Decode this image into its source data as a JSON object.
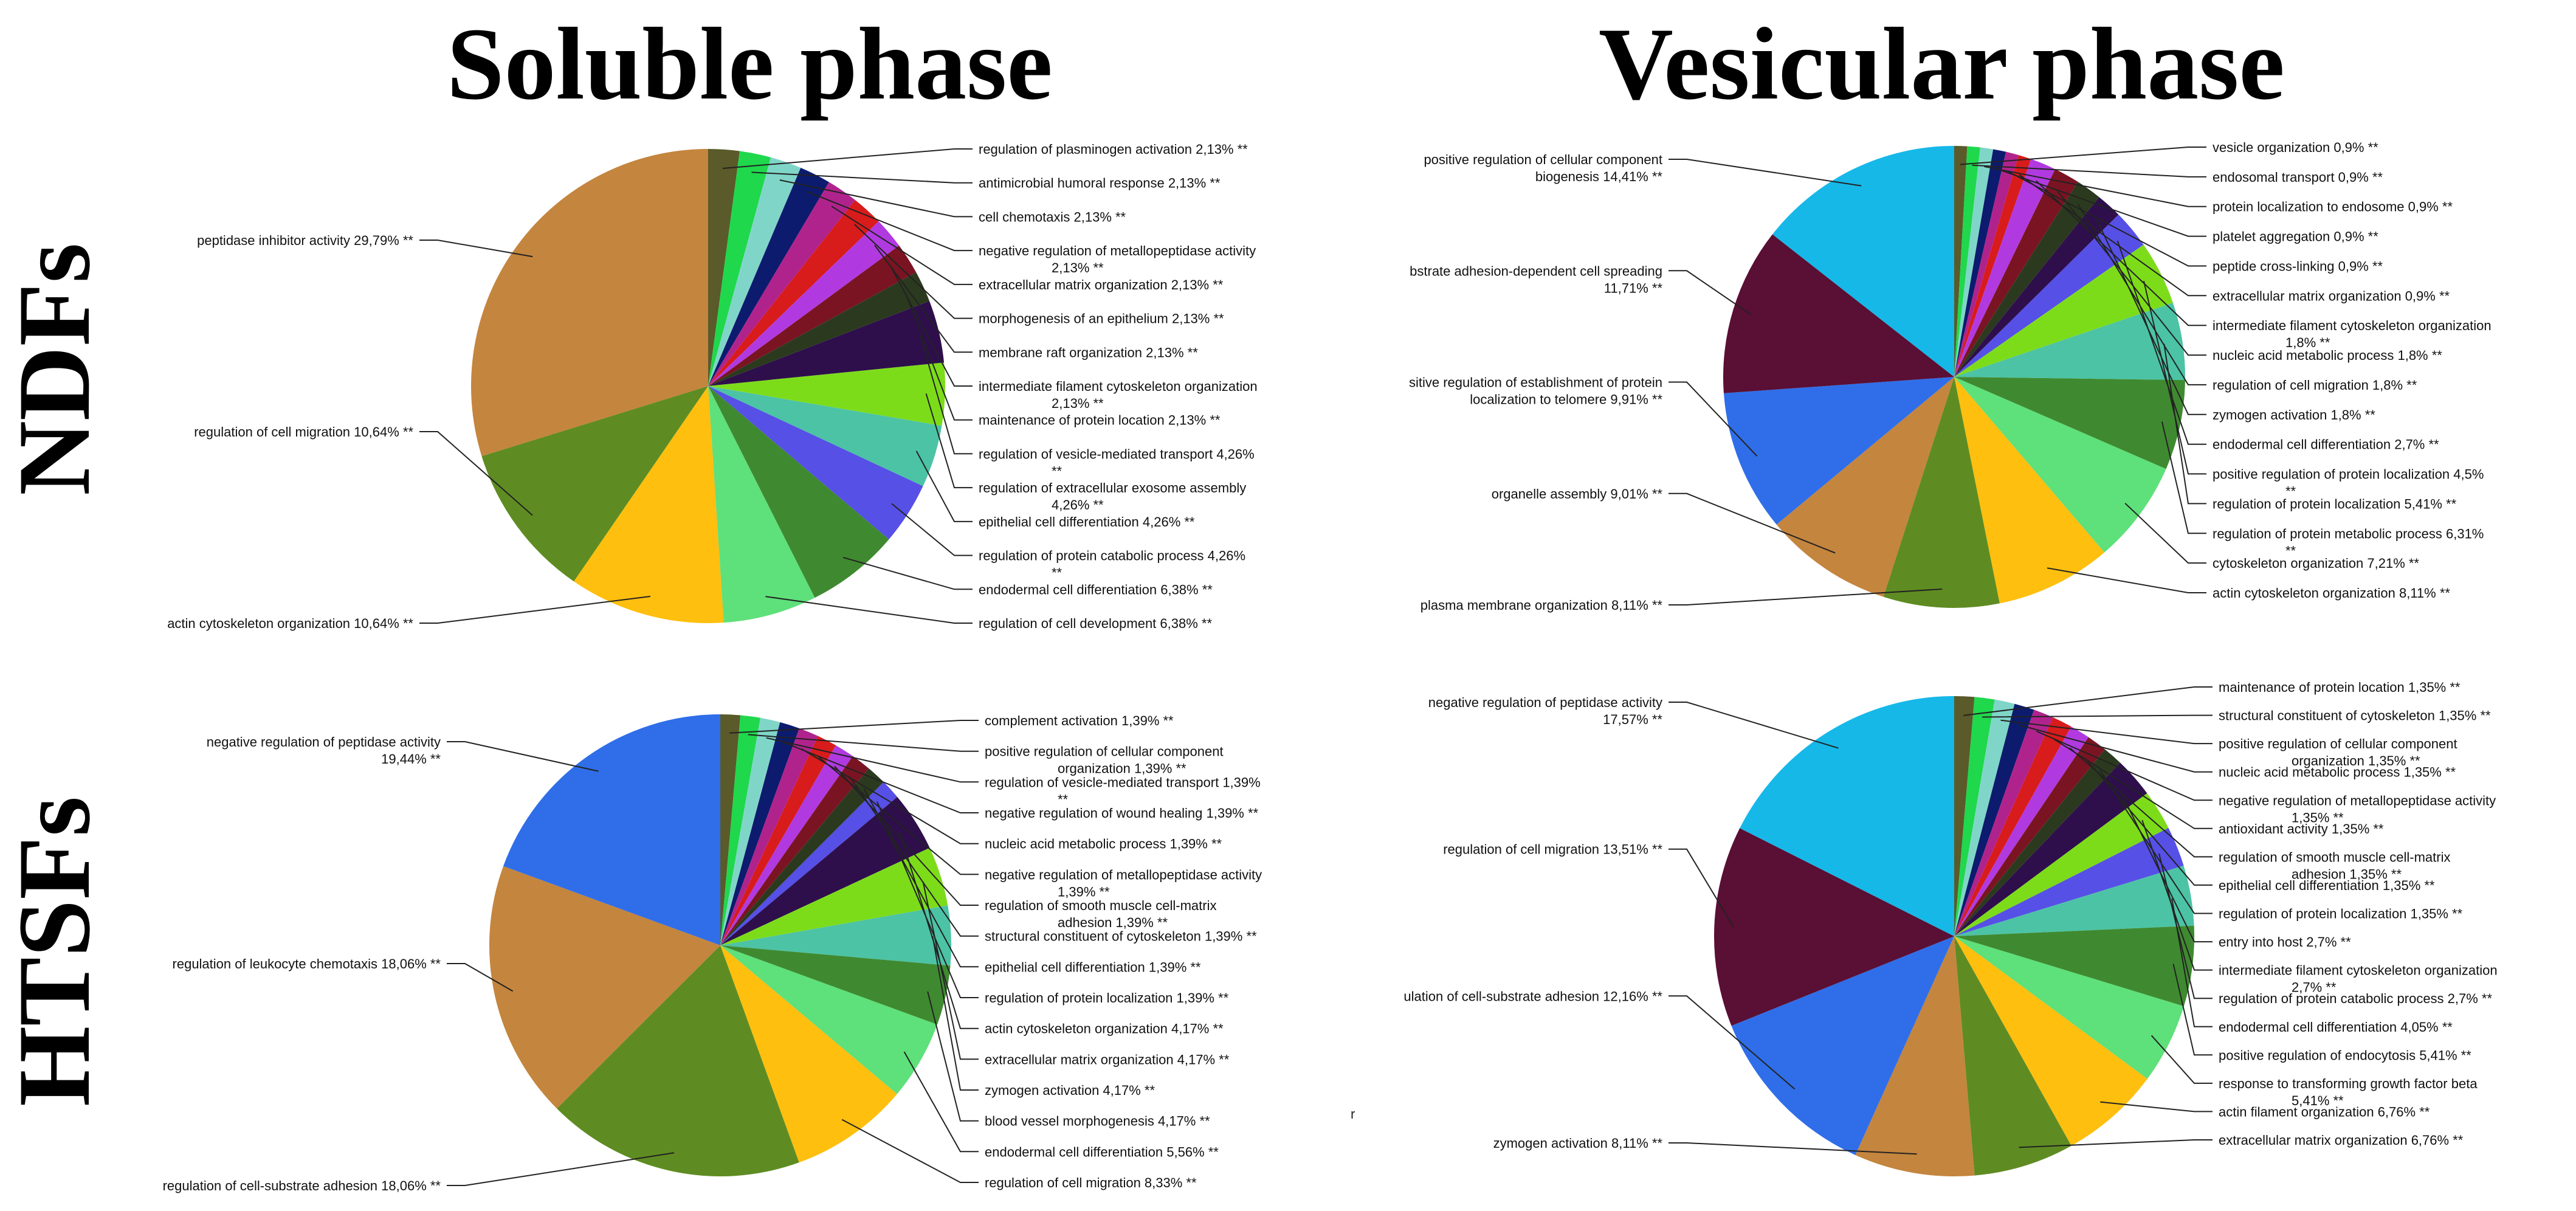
{
  "titles": {
    "soluble": "Soluble phase",
    "vesicular": "Vesicular phase",
    "ndfs": "NDFs",
    "htsfs": "HTSFs"
  },
  "stray_mark": "r",
  "chart_data": [
    {
      "id": "ndfs-soluble",
      "type": "pie",
      "title": "Soluble phase",
      "row": "NDFs",
      "slices": [
        {
          "label": "regulation of plasminogen activation 2,13% **",
          "value": 2.13,
          "color": "#5a5a2a",
          "side": "right"
        },
        {
          "label": "antimicrobial humoral response 2,13% **",
          "value": 2.13,
          "color": "#1fd84c",
          "side": "right"
        },
        {
          "label": "cell chemotaxis 2,13% **",
          "value": 2.13,
          "color": "#7fd6c8",
          "side": "right"
        },
        {
          "label": "negative regulation of metallopeptidase activity\n2,13% **",
          "value": 2.13,
          "color": "#0c1b6e",
          "side": "right"
        },
        {
          "label": "extracellular matrix organization 2,13% **",
          "value": 2.13,
          "color": "#b0238c",
          "side": "right"
        },
        {
          "label": "morphogenesis of an epithelium 2,13% **",
          "value": 2.13,
          "color": "#d81b1b",
          "side": "right"
        },
        {
          "label": "membrane raft organization 2,13% **",
          "value": 2.13,
          "color": "#b03ae0",
          "side": "right"
        },
        {
          "label": "intermediate filament cytoskeleton organization\n2,13% **",
          "value": 2.13,
          "color": "#7a1422",
          "side": "right"
        },
        {
          "label": "maintenance of protein location 2,13% **",
          "value": 2.13,
          "color": "#2b3a1e",
          "side": "right"
        },
        {
          "label": "regulation of vesicle-mediated transport 4,26%\n**",
          "value": 4.26,
          "color": "#2e0f4c",
          "side": "right"
        },
        {
          "label": "regulation of extracellular exosome assembly\n4,26% **",
          "value": 4.26,
          "color": "#7ddc1a",
          "side": "right"
        },
        {
          "label": "epithelial cell differentiation 4,26% **",
          "value": 4.26,
          "color": "#4cc3a5",
          "side": "right"
        },
        {
          "label": "regulation of protein catabolic process 4,26%\n**",
          "value": 4.26,
          "color": "#5650e6",
          "side": "right"
        },
        {
          "label": "endodermal cell differentiation 6,38% **",
          "value": 6.38,
          "color": "#3f8a30",
          "side": "right"
        },
        {
          "label": "regulation of cell development 6,38% **",
          "value": 6.38,
          "color": "#5ee07a",
          "side": "right"
        },
        {
          "label": "actin cytoskeleton organization 10,64% **",
          "value": 10.64,
          "color": "#ffbf0f",
          "side": "left"
        },
        {
          "label": "regulation of cell migration 10,64% **",
          "value": 10.64,
          "color": "#5e8c22",
          "side": "left"
        },
        {
          "label": "peptidase inhibitor activity 29,79% **",
          "value": 29.79,
          "color": "#c4853e",
          "side": "left"
        }
      ]
    },
    {
      "id": "ndfs-vesicular",
      "type": "pie",
      "title": "Vesicular phase",
      "row": "NDFs",
      "slices": [
        {
          "label": "vesicle organization 0,9% **",
          "value": 0.9,
          "color": "#5a5a2a",
          "side": "right"
        },
        {
          "label": "endosomal transport 0,9% **",
          "value": 0.9,
          "color": "#1fd84c",
          "side": "right"
        },
        {
          "label": "protein localization to endosome 0,9% **",
          "value": 0.9,
          "color": "#7fd6c8",
          "side": "right"
        },
        {
          "label": "platelet aggregation 0,9% **",
          "value": 0.9,
          "color": "#0c1b6e",
          "side": "right"
        },
        {
          "label": "peptide cross-linking 0,9% **",
          "value": 0.9,
          "color": "#b0238c",
          "side": "right"
        },
        {
          "label": "extracellular matrix organization 0,9% **",
          "value": 0.9,
          "color": "#d81b1b",
          "side": "right"
        },
        {
          "label": "intermediate filament cytoskeleton organization\n1,8% **",
          "value": 1.8,
          "color": "#b03ae0",
          "side": "right"
        },
        {
          "label": "nucleic acid metabolic process 1,8% **",
          "value": 1.8,
          "color": "#7a1422",
          "side": "right"
        },
        {
          "label": "regulation of cell migration 1,8% **",
          "value": 1.8,
          "color": "#2b3a1e",
          "side": "right"
        },
        {
          "label": "zymogen activation 1,8% **",
          "value": 1.8,
          "color": "#2e0f4c",
          "side": "right"
        },
        {
          "label": "endodermal cell differentiation 2,7% **",
          "value": 2.7,
          "color": "#5650e6",
          "side": "right"
        },
        {
          "label": "positive regulation of protein localization 4,5%\n**",
          "value": 4.5,
          "color": "#7ddc1a",
          "side": "right"
        },
        {
          "label": "regulation of protein localization 5,41% **",
          "value": 5.41,
          "color": "#4cc3a5",
          "side": "right"
        },
        {
          "label": "regulation of protein metabolic process 6,31%\n**",
          "value": 6.31,
          "color": "#3f8a30",
          "side": "right"
        },
        {
          "label": "cytoskeleton organization 7,21% **",
          "value": 7.21,
          "color": "#5ee07a",
          "side": "right"
        },
        {
          "label": "actin cytoskeleton organization 8,11% **",
          "value": 8.11,
          "color": "#ffbf0f",
          "side": "right"
        },
        {
          "label": "plasma membrane organization 8,11% **",
          "value": 8.11,
          "color": "#5e8c22",
          "side": "left"
        },
        {
          "label": "organelle assembly 9,01% **",
          "value": 9.01,
          "color": "#c4853e",
          "side": "left"
        },
        {
          "label": "sitive regulation of establishment of protein\nlocalization to telomere 9,91% **",
          "value": 9.91,
          "color": "#2f6ee8",
          "side": "left"
        },
        {
          "label": "bstrate adhesion-dependent cell spreading\n11,71% **",
          "value": 11.71,
          "color": "#5a0f35",
          "side": "left"
        },
        {
          "label": "positive regulation of cellular component\nbiogenesis 14,41% **",
          "value": 14.41,
          "color": "#16b8e8",
          "side": "left"
        }
      ]
    },
    {
      "id": "htsfs-soluble",
      "type": "pie",
      "title": "Soluble phase",
      "row": "HTSFs",
      "slices": [
        {
          "label": "complement activation 1,39% **",
          "value": 1.39,
          "color": "#5a5a2a",
          "side": "right"
        },
        {
          "label": "positive regulation of cellular component\norganization 1,39% **",
          "value": 1.39,
          "color": "#1fd84c",
          "side": "right"
        },
        {
          "label": "regulation of vesicle-mediated transport 1,39%\n**",
          "value": 1.39,
          "color": "#7fd6c8",
          "side": "right"
        },
        {
          "label": "negative regulation of wound healing 1,39% **",
          "value": 1.39,
          "color": "#0c1b6e",
          "side": "right"
        },
        {
          "label": "nucleic acid metabolic process 1,39% **",
          "value": 1.39,
          "color": "#b0238c",
          "side": "right"
        },
        {
          "label": "negative regulation of metallopeptidase activity\n1,39% **",
          "value": 1.39,
          "color": "#d81b1b",
          "side": "right"
        },
        {
          "label": "regulation of smooth muscle cell-matrix\nadhesion 1,39% **",
          "value": 1.39,
          "color": "#b03ae0",
          "side": "right"
        },
        {
          "label": "structural constituent of cytoskeleton 1,39% **",
          "value": 1.39,
          "color": "#7a1422",
          "side": "right"
        },
        {
          "label": "epithelial cell differentiation 1,39% **",
          "value": 1.39,
          "color": "#2b3a1e",
          "side": "right"
        },
        {
          "label": "regulation of protein localization 1,39% **",
          "value": 1.39,
          "color": "#5650e6",
          "side": "right"
        },
        {
          "label": "actin cytoskeleton organization 4,17% **",
          "value": 4.17,
          "color": "#2e0f4c",
          "side": "right"
        },
        {
          "label": "extracellular matrix organization 4,17% **",
          "value": 4.17,
          "color": "#7ddc1a",
          "side": "right"
        },
        {
          "label": "zymogen activation 4,17% **",
          "value": 4.17,
          "color": "#4cc3a5",
          "side": "right"
        },
        {
          "label": "blood vessel morphogenesis 4,17% **",
          "value": 4.17,
          "color": "#3f8a30",
          "side": "right"
        },
        {
          "label": "endodermal cell differentiation 5,56% **",
          "value": 5.56,
          "color": "#5ee07a",
          "side": "right"
        },
        {
          "label": "regulation of cell migration 8,33% **",
          "value": 8.33,
          "color": "#ffbf0f",
          "side": "right"
        },
        {
          "label": "regulation of cell-substrate adhesion 18,06% **",
          "value": 18.06,
          "color": "#5e8c22",
          "side": "left"
        },
        {
          "label": "regulation of leukocyte chemotaxis 18,06% **",
          "value": 18.06,
          "color": "#c4853e",
          "side": "left"
        },
        {
          "label": "negative regulation of peptidase activity\n19,44% **",
          "value": 19.44,
          "color": "#2f6ee8",
          "side": "left"
        }
      ]
    },
    {
      "id": "htsfs-vesicular",
      "type": "pie",
      "title": "Vesicular phase",
      "row": "HTSFs",
      "slices": [
        {
          "label": "maintenance of protein location 1,35% **",
          "value": 1.35,
          "color": "#5a5a2a",
          "side": "right"
        },
        {
          "label": "structural constituent of cytoskeleton 1,35% **",
          "value": 1.35,
          "color": "#1fd84c",
          "side": "right"
        },
        {
          "label": "positive regulation of cellular component\norganization 1,35% **",
          "value": 1.35,
          "color": "#7fd6c8",
          "side": "right"
        },
        {
          "label": "nucleic acid metabolic process 1,35% **",
          "value": 1.35,
          "color": "#0c1b6e",
          "side": "right"
        },
        {
          "label": "negative regulation of metallopeptidase activity\n1,35% **",
          "value": 1.35,
          "color": "#b0238c",
          "side": "right"
        },
        {
          "label": "antioxidant activity 1,35% **",
          "value": 1.35,
          "color": "#d81b1b",
          "side": "right"
        },
        {
          "label": "regulation of smooth muscle cell-matrix\nadhesion 1,35% **",
          "value": 1.35,
          "color": "#b03ae0",
          "side": "right"
        },
        {
          "label": "epithelial cell differentiation 1,35% **",
          "value": 1.35,
          "color": "#7a1422",
          "side": "right"
        },
        {
          "label": "regulation of protein localization 1,35% **",
          "value": 1.35,
          "color": "#2b3a1e",
          "side": "right"
        },
        {
          "label": "entry into host 2,7% **",
          "value": 2.7,
          "color": "#2e0f4c",
          "side": "right"
        },
        {
          "label": "intermediate filament cytoskeleton organization\n2,7% **",
          "value": 2.7,
          "color": "#7ddc1a",
          "side": "right"
        },
        {
          "label": "regulation of protein catabolic process 2,7% **",
          "value": 2.7,
          "color": "#5650e6",
          "side": "right"
        },
        {
          "label": "endodermal cell differentiation 4,05% **",
          "value": 4.05,
          "color": "#4cc3a5",
          "side": "right"
        },
        {
          "label": "positive regulation of endocytosis 5,41% **",
          "value": 5.41,
          "color": "#3f8a30",
          "side": "right"
        },
        {
          "label": "response to transforming growth factor beta\n5,41% **",
          "value": 5.41,
          "color": "#5ee07a",
          "side": "right"
        },
        {
          "label": "actin filament organization 6,76% **",
          "value": 6.76,
          "color": "#ffbf0f",
          "side": "right"
        },
        {
          "label": "extracellular matrix organization 6,76% **",
          "value": 6.76,
          "color": "#5e8c22",
          "side": "right"
        },
        {
          "label": "zymogen activation 8,11% **",
          "value": 8.11,
          "color": "#c4853e",
          "side": "left"
        },
        {
          "label": "ulation of cell-substrate adhesion 12,16% **",
          "value": 12.16,
          "color": "#2f6ee8",
          "side": "left"
        },
        {
          "label": "regulation of cell migration 13,51% **",
          "value": 13.51,
          "color": "#5a0f35",
          "side": "left"
        },
        {
          "label": "negative regulation of peptidase activity\n17,57% **",
          "value": 17.57,
          "color": "#16b8e8",
          "side": "left"
        }
      ]
    }
  ]
}
